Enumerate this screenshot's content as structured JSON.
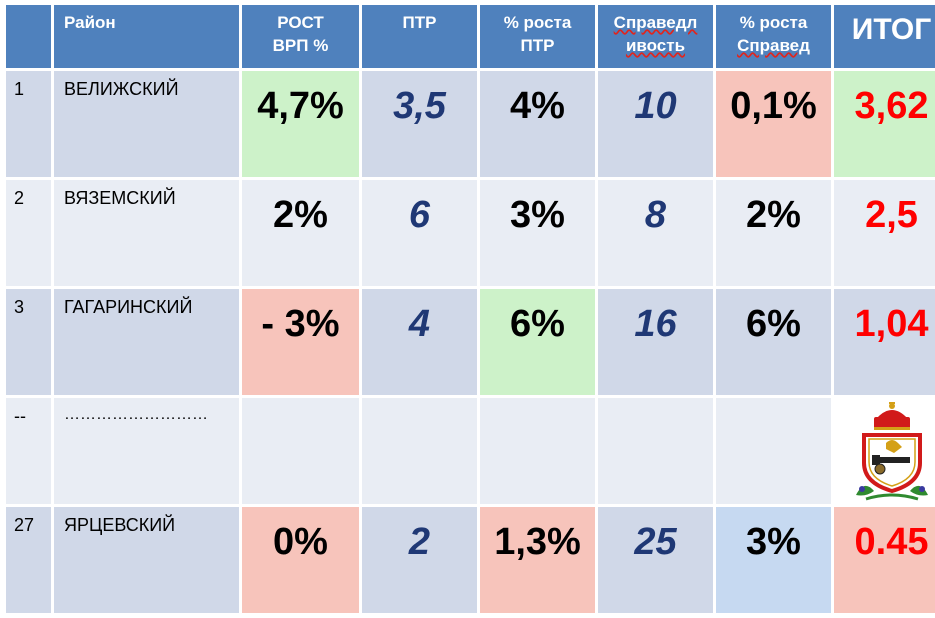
{
  "headers": {
    "col0": "",
    "district": "Район",
    "grp_line1": "РОСТ",
    "grp_line2": "ВРП %",
    "ptr": "ПТР",
    "ptr_growth_line1": "% роста",
    "ptr_growth_line2": "ПТР",
    "fairness_line1": "Справедл",
    "fairness_line2": "ивость",
    "fair_growth_line1": "% роста",
    "fair_growth_line2": "Справед",
    "total": "ИТОГ"
  },
  "rows": [
    {
      "num": "1",
      "name": "ВЕЛИЖСКИЙ",
      "grp": "4,7%",
      "ptr": "3,5",
      "ptr_growth": "4%",
      "fairness": "10",
      "fair_growth": "0,1%",
      "total": "3,62"
    },
    {
      "num": "2",
      "name": "ВЯЗЕМСКИЙ",
      "grp": "2%",
      "ptr": "6",
      "ptr_growth": "3%",
      "fairness": "8",
      "fair_growth": "2%",
      "total": "2,5"
    },
    {
      "num": "3",
      "name": "ГАГАРИНСКИЙ",
      "grp": "- 3%",
      "ptr": "4",
      "ptr_growth": "6%",
      "fairness": "16",
      "fair_growth": "6%",
      "total": "1,04"
    },
    {
      "num": "--",
      "name": "………………………",
      "grp": "",
      "ptr": "",
      "ptr_growth": "",
      "fairness": "",
      "fair_growth": "",
      "total": ""
    },
    {
      "num": "27",
      "name": "ЯРЦЕВСКИЙ",
      "grp": "0%",
      "ptr": "2",
      "ptr_growth": "1,3%",
      "fairness": "25",
      "fair_growth": "3%",
      "total": "0.45"
    }
  ],
  "colors": {
    "header": "#4f81bd",
    "row_dark": "#d0d8e8",
    "row_light": "#e9edf4",
    "highlight_green": "#cdf2c9",
    "highlight_pink": "#f7c4bb",
    "highlight_blue": "#c6d9f1",
    "italic_numbers": "#1f3875",
    "total_red": "#ff0000"
  },
  "icons": {
    "emblem": "smolensk-coat-of-arms-icon"
  }
}
